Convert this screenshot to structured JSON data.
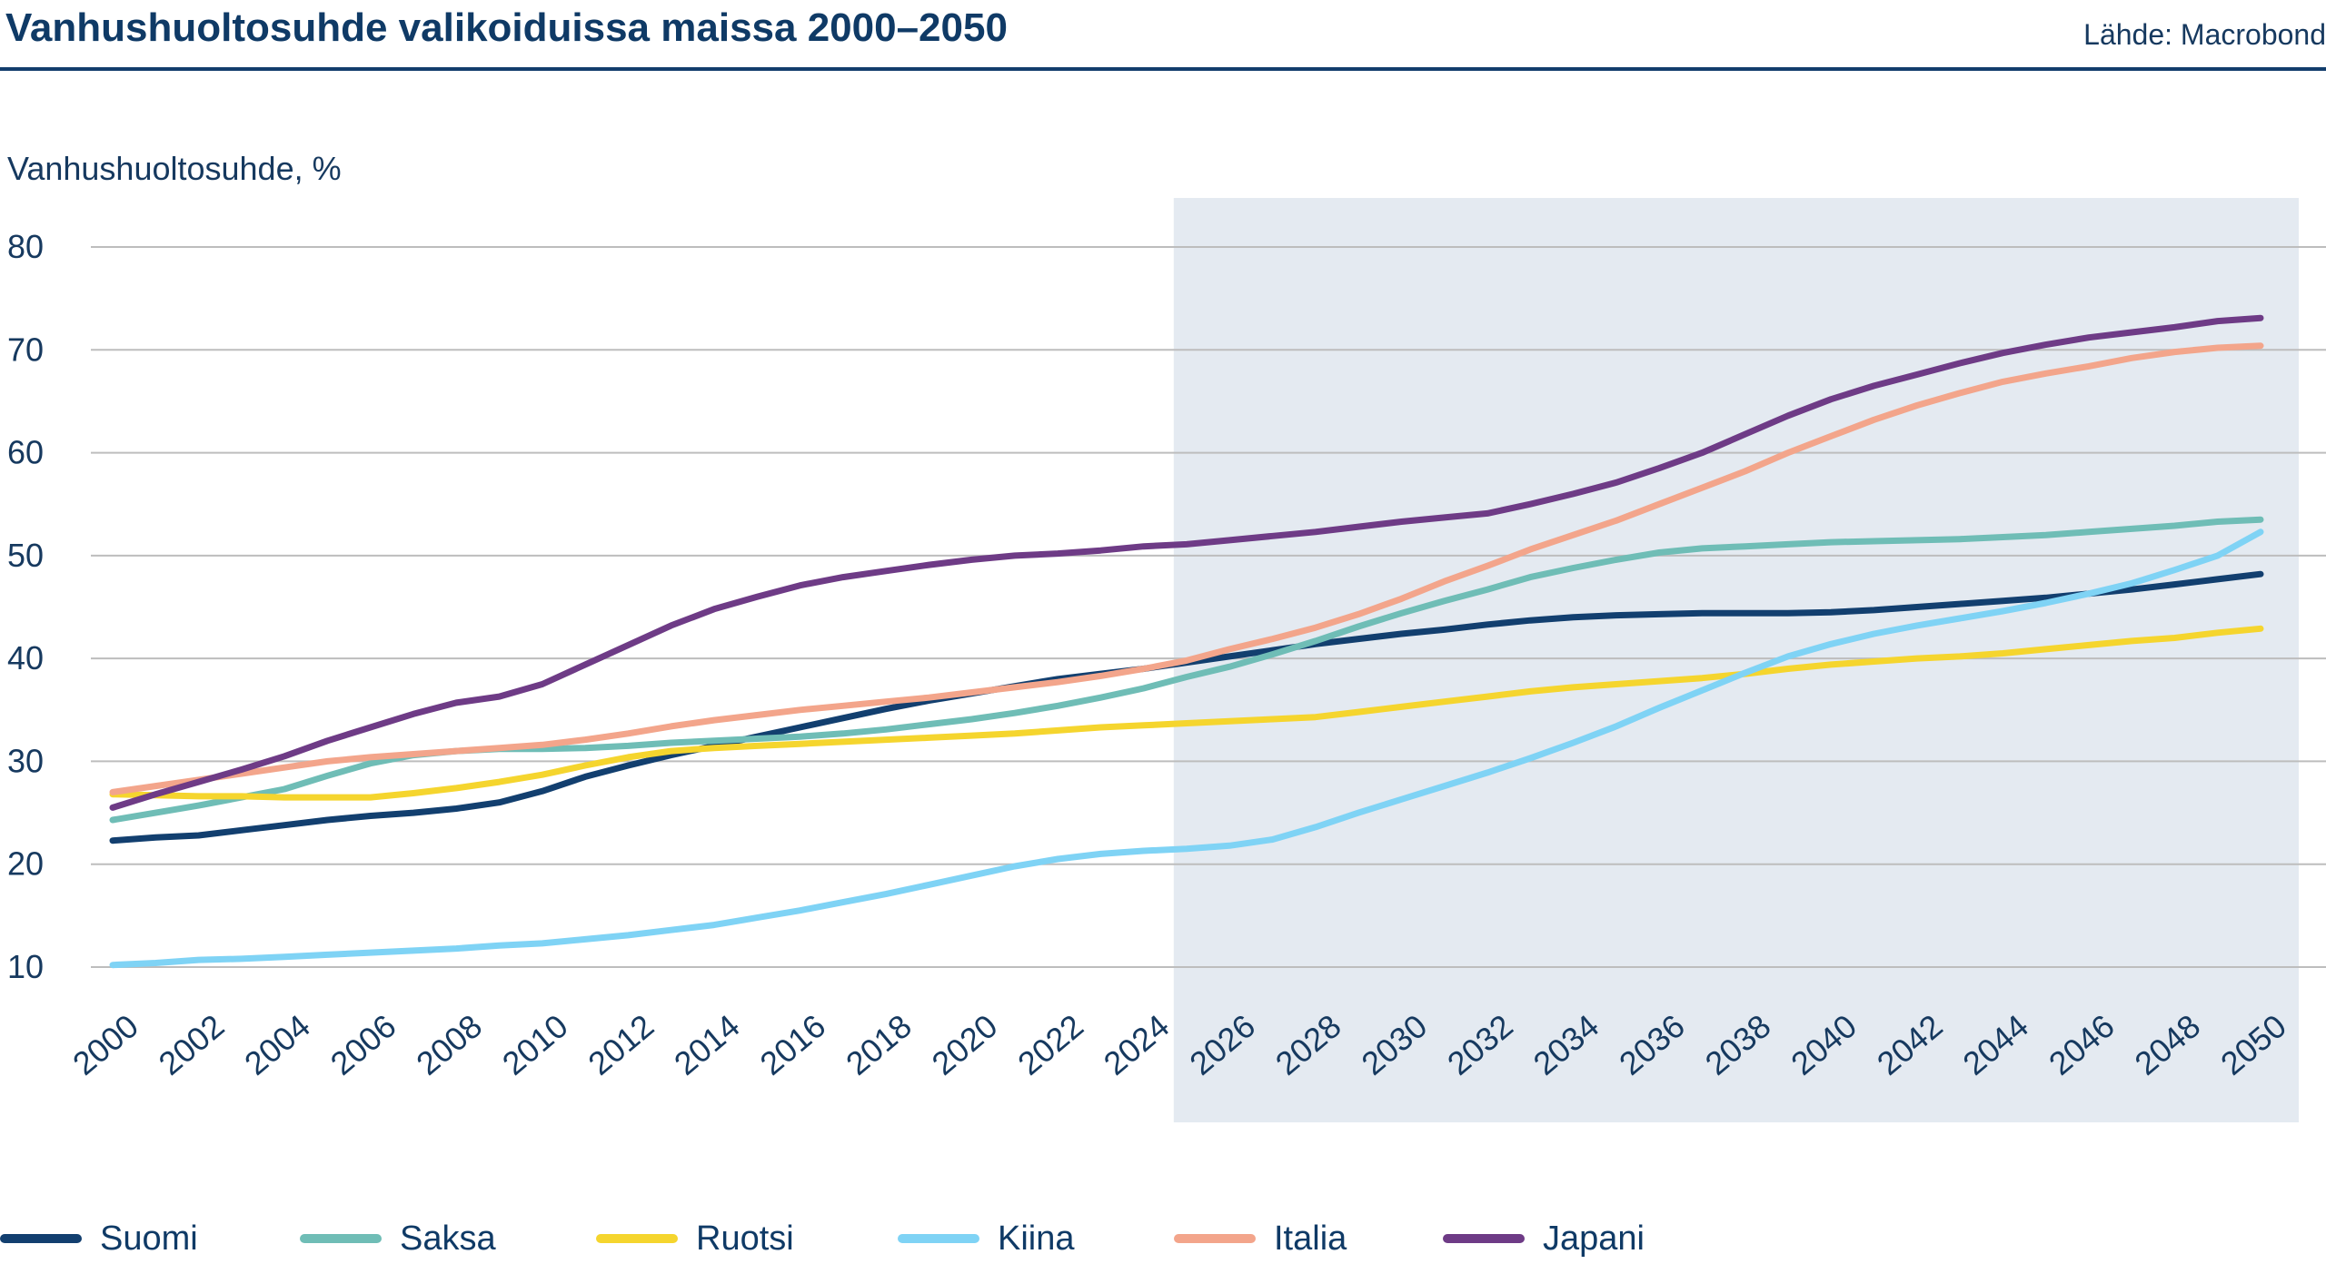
{
  "header": {
    "title": "Vanhushuoltosuhde valikoiduissa maissa 2000–2050",
    "source": "Lähde: Macrobond"
  },
  "chart_data": {
    "type": "line",
    "title": "Vanhushuoltosuhde valikoiduissa maissa 2000–2050",
    "ylabel": "Vanhushuoltosuhde, %",
    "xlabel": "",
    "ylim": [
      10,
      80
    ],
    "xlim": [
      2000,
      2050
    ],
    "yticks": [
      10,
      20,
      30,
      40,
      50,
      60,
      70,
      80
    ],
    "xticks": [
      2000,
      2002,
      2004,
      2006,
      2008,
      2010,
      2012,
      2014,
      2016,
      2018,
      2020,
      2022,
      2024,
      2026,
      2028,
      2030,
      2032,
      2034,
      2036,
      2038,
      2040,
      2042,
      2044,
      2046,
      2048,
      2050
    ],
    "shaded_region": [
      2024.7,
      2050.9
    ],
    "grid": "horizontal",
    "legend_position": "bottom",
    "series": [
      {
        "name": "Suomi",
        "color": "#123f6f",
        "points": [
          [
            2000,
            22.3
          ],
          [
            2001,
            22.6
          ],
          [
            2002,
            22.8
          ],
          [
            2003,
            23.3
          ],
          [
            2004,
            23.8
          ],
          [
            2005,
            24.3
          ],
          [
            2006,
            24.7
          ],
          [
            2007,
            25.0
          ],
          [
            2008,
            25.4
          ],
          [
            2009,
            26.0
          ],
          [
            2010,
            27.1
          ],
          [
            2011,
            28.5
          ],
          [
            2012,
            29.6
          ],
          [
            2013,
            30.6
          ],
          [
            2014,
            31.5
          ],
          [
            2015,
            32.4
          ],
          [
            2016,
            33.3
          ],
          [
            2017,
            34.2
          ],
          [
            2018,
            35.1
          ],
          [
            2019,
            35.9
          ],
          [
            2020,
            36.6
          ],
          [
            2021,
            37.3
          ],
          [
            2022,
            38.0
          ],
          [
            2023,
            38.5
          ],
          [
            2024,
            39.0
          ],
          [
            2025,
            39.6
          ],
          [
            2026,
            40.2
          ],
          [
            2027,
            40.8
          ],
          [
            2028,
            41.4
          ],
          [
            2029,
            41.9
          ],
          [
            2030,
            42.4
          ],
          [
            2031,
            42.8
          ],
          [
            2032,
            43.3
          ],
          [
            2033,
            43.7
          ],
          [
            2034,
            44.0
          ],
          [
            2035,
            44.2
          ],
          [
            2036,
            44.3
          ],
          [
            2037,
            44.4
          ],
          [
            2038,
            44.4
          ],
          [
            2039,
            44.4
          ],
          [
            2040,
            44.5
          ],
          [
            2041,
            44.7
          ],
          [
            2042,
            45.0
          ],
          [
            2043,
            45.3
          ],
          [
            2044,
            45.6
          ],
          [
            2045,
            45.9
          ],
          [
            2046,
            46.3
          ],
          [
            2047,
            46.7
          ],
          [
            2048,
            47.2
          ],
          [
            2049,
            47.7
          ],
          [
            2050,
            48.2
          ]
        ]
      },
      {
        "name": "Saksa",
        "color": "#6fbdb6",
        "points": [
          [
            2000,
            24.3
          ],
          [
            2001,
            25.0
          ],
          [
            2002,
            25.7
          ],
          [
            2003,
            26.5
          ],
          [
            2004,
            27.3
          ],
          [
            2005,
            28.6
          ],
          [
            2006,
            29.8
          ],
          [
            2007,
            30.6
          ],
          [
            2008,
            31.0
          ],
          [
            2009,
            31.2
          ],
          [
            2010,
            31.2
          ],
          [
            2011,
            31.3
          ],
          [
            2012,
            31.5
          ],
          [
            2013,
            31.8
          ],
          [
            2014,
            32.0
          ],
          [
            2015,
            32.2
          ],
          [
            2016,
            32.4
          ],
          [
            2017,
            32.7
          ],
          [
            2018,
            33.1
          ],
          [
            2019,
            33.6
          ],
          [
            2020,
            34.1
          ],
          [
            2021,
            34.7
          ],
          [
            2022,
            35.4
          ],
          [
            2023,
            36.2
          ],
          [
            2024,
            37.1
          ],
          [
            2025,
            38.2
          ],
          [
            2026,
            39.2
          ],
          [
            2027,
            40.4
          ],
          [
            2028,
            41.7
          ],
          [
            2029,
            43.1
          ],
          [
            2030,
            44.4
          ],
          [
            2031,
            45.6
          ],
          [
            2032,
            46.7
          ],
          [
            2033,
            47.9
          ],
          [
            2034,
            48.8
          ],
          [
            2035,
            49.6
          ],
          [
            2036,
            50.3
          ],
          [
            2037,
            50.7
          ],
          [
            2038,
            50.9
          ],
          [
            2039,
            51.1
          ],
          [
            2040,
            51.3
          ],
          [
            2041,
            51.4
          ],
          [
            2042,
            51.5
          ],
          [
            2043,
            51.6
          ],
          [
            2044,
            51.8
          ],
          [
            2045,
            52.0
          ],
          [
            2046,
            52.3
          ],
          [
            2047,
            52.6
          ],
          [
            2048,
            52.9
          ],
          [
            2049,
            53.3
          ],
          [
            2050,
            53.5
          ]
        ]
      },
      {
        "name": "Ruotsi",
        "color": "#f5d52e",
        "points": [
          [
            2000,
            26.8
          ],
          [
            2001,
            26.7
          ],
          [
            2002,
            26.6
          ],
          [
            2003,
            26.6
          ],
          [
            2004,
            26.5
          ],
          [
            2005,
            26.5
          ],
          [
            2006,
            26.5
          ],
          [
            2007,
            26.9
          ],
          [
            2008,
            27.4
          ],
          [
            2009,
            28.0
          ],
          [
            2010,
            28.7
          ],
          [
            2011,
            29.6
          ],
          [
            2012,
            30.4
          ],
          [
            2013,
            31.0
          ],
          [
            2014,
            31.3
          ],
          [
            2015,
            31.5
          ],
          [
            2016,
            31.7
          ],
          [
            2017,
            31.9
          ],
          [
            2018,
            32.1
          ],
          [
            2019,
            32.3
          ],
          [
            2020,
            32.5
          ],
          [
            2021,
            32.7
          ],
          [
            2022,
            33.0
          ],
          [
            2023,
            33.3
          ],
          [
            2024,
            33.5
          ],
          [
            2025,
            33.7
          ],
          [
            2026,
            33.9
          ],
          [
            2027,
            34.1
          ],
          [
            2028,
            34.3
          ],
          [
            2029,
            34.8
          ],
          [
            2030,
            35.3
          ],
          [
            2031,
            35.8
          ],
          [
            2032,
            36.3
          ],
          [
            2033,
            36.8
          ],
          [
            2034,
            37.2
          ],
          [
            2035,
            37.5
          ],
          [
            2036,
            37.8
          ],
          [
            2037,
            38.1
          ],
          [
            2038,
            38.5
          ],
          [
            2039,
            39.0
          ],
          [
            2040,
            39.4
          ],
          [
            2041,
            39.7
          ],
          [
            2042,
            40.0
          ],
          [
            2043,
            40.2
          ],
          [
            2044,
            40.5
          ],
          [
            2045,
            40.9
          ],
          [
            2046,
            41.3
          ],
          [
            2047,
            41.7
          ],
          [
            2048,
            42.0
          ],
          [
            2049,
            42.5
          ],
          [
            2050,
            42.9
          ]
        ]
      },
      {
        "name": "Kiina",
        "color": "#7fd3f5",
        "points": [
          [
            2000,
            10.2
          ],
          [
            2001,
            10.4
          ],
          [
            2002,
            10.7
          ],
          [
            2003,
            10.8
          ],
          [
            2004,
            11.0
          ],
          [
            2005,
            11.2
          ],
          [
            2006,
            11.4
          ],
          [
            2007,
            11.6
          ],
          [
            2008,
            11.8
          ],
          [
            2009,
            12.1
          ],
          [
            2010,
            12.3
          ],
          [
            2011,
            12.7
          ],
          [
            2012,
            13.1
          ],
          [
            2013,
            13.6
          ],
          [
            2014,
            14.1
          ],
          [
            2015,
            14.8
          ],
          [
            2016,
            15.5
          ],
          [
            2017,
            16.3
          ],
          [
            2018,
            17.1
          ],
          [
            2019,
            18.0
          ],
          [
            2020,
            18.9
          ],
          [
            2021,
            19.8
          ],
          [
            2022,
            20.5
          ],
          [
            2023,
            21.0
          ],
          [
            2024,
            21.3
          ],
          [
            2025,
            21.5
          ],
          [
            2026,
            21.8
          ],
          [
            2027,
            22.4
          ],
          [
            2028,
            23.6
          ],
          [
            2029,
            25.0
          ],
          [
            2030,
            26.3
          ],
          [
            2031,
            27.6
          ],
          [
            2032,
            28.9
          ],
          [
            2033,
            30.3
          ],
          [
            2034,
            31.8
          ],
          [
            2035,
            33.4
          ],
          [
            2036,
            35.2
          ],
          [
            2037,
            36.9
          ],
          [
            2038,
            38.6
          ],
          [
            2039,
            40.2
          ],
          [
            2040,
            41.4
          ],
          [
            2041,
            42.4
          ],
          [
            2042,
            43.2
          ],
          [
            2043,
            43.9
          ],
          [
            2044,
            44.6
          ],
          [
            2045,
            45.4
          ],
          [
            2046,
            46.3
          ],
          [
            2047,
            47.3
          ],
          [
            2048,
            48.6
          ],
          [
            2049,
            50.0
          ],
          [
            2050,
            52.3
          ]
        ]
      },
      {
        "name": "Italia",
        "color": "#f3a58b",
        "points": [
          [
            2000,
            27.0
          ],
          [
            2001,
            27.6
          ],
          [
            2002,
            28.2
          ],
          [
            2003,
            28.8
          ],
          [
            2004,
            29.4
          ],
          [
            2005,
            30.0
          ],
          [
            2006,
            30.4
          ],
          [
            2007,
            30.7
          ],
          [
            2008,
            31.0
          ],
          [
            2009,
            31.3
          ],
          [
            2010,
            31.6
          ],
          [
            2011,
            32.1
          ],
          [
            2012,
            32.7
          ],
          [
            2013,
            33.4
          ],
          [
            2014,
            34.0
          ],
          [
            2015,
            34.5
          ],
          [
            2016,
            35.0
          ],
          [
            2017,
            35.4
          ],
          [
            2018,
            35.8
          ],
          [
            2019,
            36.2
          ],
          [
            2020,
            36.7
          ],
          [
            2021,
            37.2
          ],
          [
            2022,
            37.7
          ],
          [
            2023,
            38.3
          ],
          [
            2024,
            39.0
          ],
          [
            2025,
            39.8
          ],
          [
            2026,
            40.9
          ],
          [
            2027,
            41.9
          ],
          [
            2028,
            43.0
          ],
          [
            2029,
            44.3
          ],
          [
            2030,
            45.8
          ],
          [
            2031,
            47.5
          ],
          [
            2032,
            49.0
          ],
          [
            2033,
            50.6
          ],
          [
            2034,
            52.0
          ],
          [
            2035,
            53.4
          ],
          [
            2036,
            55.0
          ],
          [
            2037,
            56.6
          ],
          [
            2038,
            58.2
          ],
          [
            2039,
            60.0
          ],
          [
            2040,
            61.6
          ],
          [
            2041,
            63.2
          ],
          [
            2042,
            64.6
          ],
          [
            2043,
            65.8
          ],
          [
            2044,
            66.9
          ],
          [
            2045,
            67.7
          ],
          [
            2046,
            68.4
          ],
          [
            2047,
            69.2
          ],
          [
            2048,
            69.8
          ],
          [
            2049,
            70.2
          ],
          [
            2050,
            70.4
          ]
        ]
      },
      {
        "name": "Japani",
        "color": "#6e3b86",
        "points": [
          [
            2000,
            25.5
          ],
          [
            2001,
            26.8
          ],
          [
            2002,
            28.0
          ],
          [
            2003,
            29.2
          ],
          [
            2004,
            30.5
          ],
          [
            2005,
            32.0
          ],
          [
            2006,
            33.3
          ],
          [
            2007,
            34.6
          ],
          [
            2008,
            35.7
          ],
          [
            2009,
            36.3
          ],
          [
            2010,
            37.5
          ],
          [
            2011,
            39.4
          ],
          [
            2012,
            41.3
          ],
          [
            2013,
            43.2
          ],
          [
            2014,
            44.8
          ],
          [
            2015,
            46.0
          ],
          [
            2016,
            47.1
          ],
          [
            2017,
            47.9
          ],
          [
            2018,
            48.5
          ],
          [
            2019,
            49.1
          ],
          [
            2020,
            49.6
          ],
          [
            2021,
            50.0
          ],
          [
            2022,
            50.2
          ],
          [
            2023,
            50.5
          ],
          [
            2024,
            50.9
          ],
          [
            2025,
            51.1
          ],
          [
            2026,
            51.5
          ],
          [
            2027,
            51.9
          ],
          [
            2028,
            52.3
          ],
          [
            2029,
            52.8
          ],
          [
            2030,
            53.3
          ],
          [
            2031,
            53.7
          ],
          [
            2032,
            54.1
          ],
          [
            2033,
            55.0
          ],
          [
            2034,
            56.0
          ],
          [
            2035,
            57.1
          ],
          [
            2036,
            58.5
          ],
          [
            2037,
            60.0
          ],
          [
            2038,
            61.8
          ],
          [
            2039,
            63.6
          ],
          [
            2040,
            65.2
          ],
          [
            2041,
            66.5
          ],
          [
            2042,
            67.6
          ],
          [
            2043,
            68.7
          ],
          [
            2044,
            69.7
          ],
          [
            2045,
            70.5
          ],
          [
            2046,
            71.2
          ],
          [
            2047,
            71.7
          ],
          [
            2048,
            72.2
          ],
          [
            2049,
            72.8
          ],
          [
            2050,
            73.1
          ]
        ]
      }
    ]
  }
}
